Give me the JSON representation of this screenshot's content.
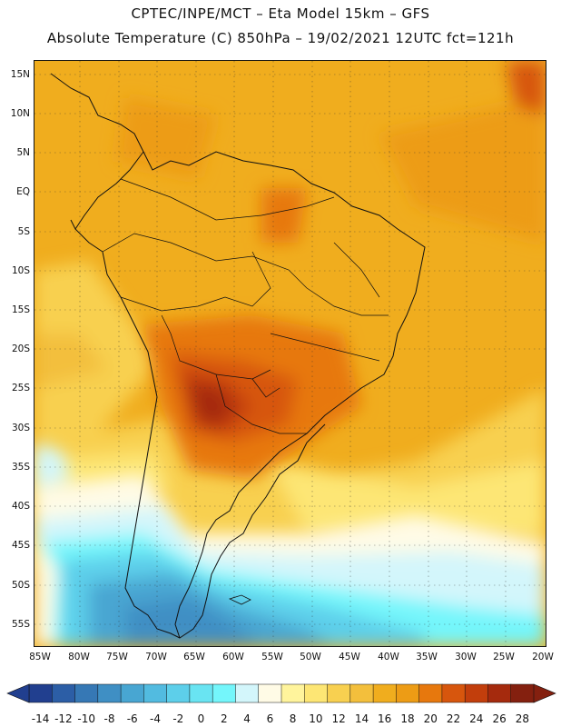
{
  "title": {
    "line1": "CPTEC/INPE/MCT –  Eta Model 15km – GFS",
    "line2": "Absolute Temperature (C) 850hPa – 19/02/2021 12UTC fct=121h"
  },
  "axes": {
    "lat_labels": [
      "15N",
      "10N",
      "5N",
      "EQ",
      "5S",
      "10S",
      "15S",
      "20S",
      "25S",
      "30S",
      "35S",
      "40S",
      "45S",
      "50S",
      "55S"
    ],
    "lon_labels": [
      "85W",
      "80W",
      "75W",
      "70W",
      "65W",
      "60W",
      "55W",
      "50W",
      "45W",
      "40W",
      "35W",
      "30W",
      "25W",
      "20W"
    ]
  },
  "colorbar": {
    "unit": "C",
    "labels": [
      "-14",
      "-12",
      "-10",
      "-8",
      "-6",
      "-4",
      "-2",
      "0",
      "2",
      "4",
      "6",
      "8",
      "10",
      "12",
      "14",
      "16",
      "18",
      "20",
      "22",
      "24",
      "26",
      "28"
    ],
    "colors": [
      "#213f8f",
      "#2c5ea6",
      "#3678b5",
      "#3f8fc4",
      "#48a6d2",
      "#52bbe0",
      "#5dcfea",
      "#69e4f2",
      "#74f6fb",
      "#d3f6fb",
      "#fffbe6",
      "#fff49c",
      "#fde674",
      "#f8d050",
      "#f3bf3c",
      "#f0ad1e",
      "#ed9c15",
      "#e7780d",
      "#d7560d",
      "#c23e0c",
      "#a52a0d",
      "#84200f"
    ]
  },
  "map": {
    "source": "Eta Model 15km – GFS",
    "level": "850hPa",
    "valid": "19/02/2021 12UTC fct=121h"
  }
}
